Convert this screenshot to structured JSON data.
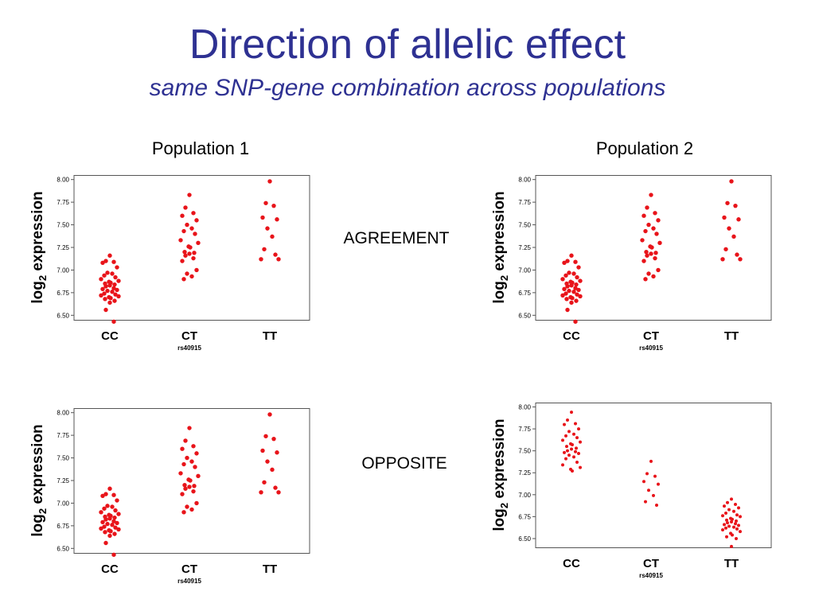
{
  "page": {
    "title": "Direction of allelic effect",
    "subtitle": "same SNP-gene combination across populations",
    "populations": [
      "Population 1",
      "Population 2"
    ],
    "middle_labels": [
      "AGREEMENT",
      "OPPOSITE"
    ]
  },
  "colors": {
    "title": "#2e3192",
    "points": "#e8141a",
    "axis": "#000000"
  },
  "chart_data": [
    {
      "type": "scatter",
      "population": "Population 1",
      "comparison": "AGREEMENT",
      "ylabel_main": "log",
      "ylabel_sub": "2",
      "ylabel_rest": " expression",
      "xlabel": "rs40915",
      "categories": [
        "CC",
        "CT",
        "TT"
      ],
      "ylim": [
        6.45,
        8.05
      ],
      "yticks": [
        "8.00",
        "7.75",
        "7.50",
        "7.25",
        "7.00",
        "6.75",
        "6.50"
      ],
      "point_size": "large",
      "groups": [
        {
          "category": "CC",
          "values": [
            7.16,
            7.1,
            7.09,
            7.08,
            7.03,
            6.97,
            6.96,
            6.94,
            6.92,
            6.9,
            6.88,
            6.87,
            6.86,
            6.85,
            6.84,
            6.83,
            6.82,
            6.8,
            6.79,
            6.78,
            6.77,
            6.76,
            6.74,
            6.73,
            6.72,
            6.71,
            6.7,
            6.69,
            6.68,
            6.66,
            6.64,
            6.56,
            6.43
          ]
        },
        {
          "category": "CT",
          "values": [
            7.83,
            7.69,
            7.63,
            7.6,
            7.55,
            7.5,
            7.46,
            7.43,
            7.4,
            7.33,
            7.3,
            7.26,
            7.25,
            7.2,
            7.19,
            7.18,
            7.16,
            7.13,
            7.1,
            7.0,
            6.96,
            6.93,
            6.9
          ]
        },
        {
          "category": "TT",
          "values": [
            7.98,
            7.74,
            7.71,
            7.58,
            7.56,
            7.46,
            7.37,
            7.23,
            7.17,
            7.12,
            7.12
          ]
        }
      ]
    },
    {
      "type": "scatter",
      "population": "Population 2",
      "comparison": "AGREEMENT",
      "ylabel_main": "log",
      "ylabel_sub": "2",
      "ylabel_rest": " expression",
      "xlabel": "rs40915",
      "categories": [
        "CC",
        "CT",
        "TT"
      ],
      "ylim": [
        6.45,
        8.05
      ],
      "yticks": [
        "8.00",
        "7.75",
        "7.50",
        "7.25",
        "7.00",
        "6.75",
        "6.50"
      ],
      "point_size": "large",
      "groups": [
        {
          "category": "CC",
          "values": [
            7.16,
            7.1,
            7.09,
            7.08,
            7.03,
            6.97,
            6.96,
            6.94,
            6.92,
            6.9,
            6.88,
            6.87,
            6.86,
            6.85,
            6.84,
            6.83,
            6.82,
            6.8,
            6.79,
            6.78,
            6.77,
            6.76,
            6.74,
            6.73,
            6.72,
            6.71,
            6.7,
            6.69,
            6.68,
            6.66,
            6.64,
            6.56,
            6.43
          ]
        },
        {
          "category": "CT",
          "values": [
            7.83,
            7.69,
            7.63,
            7.6,
            7.55,
            7.5,
            7.46,
            7.43,
            7.4,
            7.33,
            7.3,
            7.26,
            7.25,
            7.2,
            7.19,
            7.18,
            7.16,
            7.13,
            7.1,
            7.0,
            6.96,
            6.93,
            6.9
          ]
        },
        {
          "category": "TT",
          "values": [
            7.98,
            7.74,
            7.71,
            7.58,
            7.56,
            7.46,
            7.37,
            7.23,
            7.17,
            7.12,
            7.12
          ]
        }
      ]
    },
    {
      "type": "scatter",
      "population": "Population 1",
      "comparison": "OPPOSITE",
      "ylabel_main": "log",
      "ylabel_sub": "2",
      "ylabel_rest": " expression",
      "xlabel": "rs40915",
      "categories": [
        "CC",
        "CT",
        "TT"
      ],
      "ylim": [
        6.45,
        8.05
      ],
      "yticks": [
        "8.00",
        "7.75",
        "7.50",
        "7.25",
        "7.00",
        "6.75",
        "6.50"
      ],
      "point_size": "large",
      "groups": [
        {
          "category": "CC",
          "values": [
            7.16,
            7.1,
            7.09,
            7.08,
            7.03,
            6.97,
            6.96,
            6.94,
            6.92,
            6.9,
            6.88,
            6.87,
            6.86,
            6.85,
            6.84,
            6.83,
            6.82,
            6.8,
            6.79,
            6.78,
            6.77,
            6.76,
            6.74,
            6.73,
            6.72,
            6.71,
            6.7,
            6.69,
            6.68,
            6.66,
            6.64,
            6.56,
            6.43
          ]
        },
        {
          "category": "CT",
          "values": [
            7.83,
            7.69,
            7.63,
            7.6,
            7.55,
            7.5,
            7.46,
            7.43,
            7.4,
            7.33,
            7.3,
            7.26,
            7.25,
            7.2,
            7.19,
            7.18,
            7.16,
            7.13,
            7.1,
            7.0,
            6.96,
            6.93,
            6.9
          ]
        },
        {
          "category": "TT",
          "values": [
            7.98,
            7.74,
            7.71,
            7.58,
            7.56,
            7.46,
            7.37,
            7.23,
            7.17,
            7.12,
            7.12
          ]
        }
      ]
    },
    {
      "type": "scatter",
      "population": "Population 2",
      "comparison": "OPPOSITE",
      "ylabel_main": "log",
      "ylabel_sub": "2",
      "ylabel_rest": " expression",
      "xlabel": "rs40915",
      "categories": [
        "CC",
        "CT",
        "TT"
      ],
      "ylim": [
        6.4,
        8.05
      ],
      "yticks": [
        "8.00",
        "7.75",
        "7.50",
        "7.25",
        "7.00",
        "6.75",
        "6.50"
      ],
      "point_size": "small",
      "groups": [
        {
          "category": "CC",
          "values": [
            7.94,
            7.85,
            7.81,
            7.8,
            7.75,
            7.72,
            7.69,
            7.67,
            7.65,
            7.62,
            7.6,
            7.58,
            7.57,
            7.55,
            7.53,
            7.52,
            7.5,
            7.49,
            7.48,
            7.47,
            7.45,
            7.43,
            7.41,
            7.37,
            7.34,
            7.31,
            7.29,
            7.27
          ]
        },
        {
          "category": "CT",
          "values": [
            7.38,
            7.24,
            7.21,
            7.15,
            7.12,
            7.05,
            6.99,
            6.92,
            6.88
          ]
        },
        {
          "category": "TT",
          "values": [
            6.95,
            6.91,
            6.89,
            6.87,
            6.85,
            6.83,
            6.81,
            6.79,
            6.77,
            6.76,
            6.75,
            6.73,
            6.72,
            6.71,
            6.7,
            6.69,
            6.68,
            6.67,
            6.66,
            6.65,
            6.64,
            6.63,
            6.62,
            6.61,
            6.6,
            6.58,
            6.56,
            6.54,
            6.52,
            6.5,
            6.41
          ]
        }
      ]
    }
  ]
}
